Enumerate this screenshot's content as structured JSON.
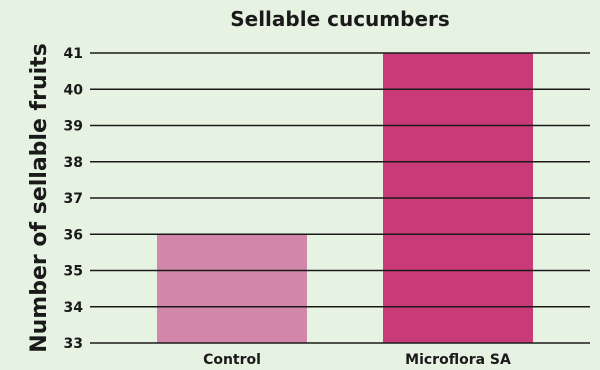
{
  "chart_data": {
    "type": "bar",
    "title": "Sellable cucumbers",
    "ylabel": "Number of sellable fruits",
    "xlabel": "",
    "categories": [
      "Control",
      "Microflora SA"
    ],
    "values": [
      36,
      41
    ],
    "ylim": [
      33,
      41
    ],
    "yticks": [
      33,
      34,
      35,
      36,
      37,
      38,
      39,
      40,
      41
    ],
    "grid": true,
    "bar_colors": [
      "#d286aa",
      "#c83a78"
    ]
  },
  "colors": {
    "background": "#e6f2e2",
    "gridline": "#1a1a1a"
  }
}
